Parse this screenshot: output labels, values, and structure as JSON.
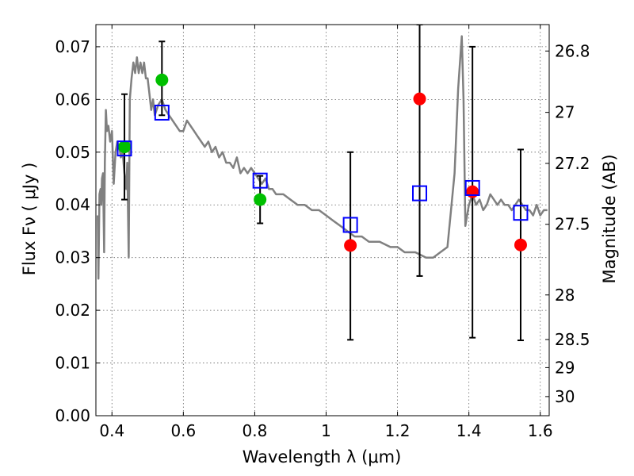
{
  "chart_data": {
    "type": "scatter",
    "xlabel": "Wavelength  λ (μm)",
    "ylabel": "Flux  Fν  ( μJy )",
    "y2label": "Magnitude (AB)",
    "xlim": [
      0.355,
      1.625
    ],
    "ylim": [
      0.0,
      0.0742
    ],
    "xticks": [
      0.4,
      0.6,
      0.8,
      1.0,
      1.2,
      1.4,
      1.6
    ],
    "xtick_labels": [
      "0.4",
      "0.6",
      "0.8",
      "1",
      "1.2",
      "1.4",
      "1.6"
    ],
    "yticks": [
      0.0,
      0.01,
      0.02,
      0.03,
      0.04,
      0.05,
      0.06,
      0.07
    ],
    "ytick_labels": [
      "0.00",
      "0.01",
      "0.02",
      "0.03",
      "0.04",
      "0.05",
      "0.06",
      "0.07"
    ],
    "y2ticks": [
      26.8,
      27,
      27.2,
      27.5,
      28,
      28.5,
      29,
      30
    ],
    "y2tick_labels": [
      "26.8",
      "27",
      "27.2",
      "27.5",
      "28",
      "28.5",
      "29",
      "30"
    ],
    "grid": true,
    "colors": {
      "sed": "#808080",
      "green": "#00bf00",
      "red": "#ff0000",
      "model": "#0000ff",
      "errorbar": "#000000"
    },
    "sed_template": {
      "x": [
        0.36,
        0.362,
        0.365,
        0.368,
        0.37,
        0.372,
        0.375,
        0.378,
        0.38,
        0.383,
        0.386,
        0.39,
        0.395,
        0.4,
        0.405,
        0.41,
        0.415,
        0.42,
        0.425,
        0.43,
        0.435,
        0.44,
        0.443,
        0.447,
        0.45,
        0.455,
        0.46,
        0.465,
        0.47,
        0.475,
        0.48,
        0.485,
        0.49,
        0.495,
        0.5,
        0.505,
        0.51,
        0.515,
        0.52,
        0.53,
        0.54,
        0.55,
        0.56,
        0.57,
        0.58,
        0.59,
        0.6,
        0.61,
        0.62,
        0.63,
        0.64,
        0.65,
        0.66,
        0.67,
        0.68,
        0.69,
        0.7,
        0.71,
        0.72,
        0.73,
        0.74,
        0.75,
        0.76,
        0.77,
        0.78,
        0.79,
        0.8,
        0.81,
        0.82,
        0.83,
        0.84,
        0.85,
        0.86,
        0.87,
        0.88,
        0.9,
        0.92,
        0.94,
        0.96,
        0.98,
        1.0,
        1.02,
        1.04,
        1.06,
        1.08,
        1.1,
        1.12,
        1.15,
        1.18,
        1.2,
        1.22,
        1.25,
        1.28,
        1.3,
        1.32,
        1.34,
        1.36,
        1.37,
        1.38,
        1.385,
        1.39,
        1.395,
        1.4,
        1.41,
        1.42,
        1.43,
        1.44,
        1.45,
        1.46,
        1.47,
        1.48,
        1.49,
        1.5,
        1.51,
        1.52,
        1.53,
        1.54,
        1.55,
        1.56,
        1.57,
        1.58,
        1.59,
        1.6,
        1.61,
        1.62
      ],
      "y": [
        0.038,
        0.026,
        0.042,
        0.043,
        0.04,
        0.045,
        0.046,
        0.031,
        0.048,
        0.058,
        0.054,
        0.055,
        0.052,
        0.054,
        0.044,
        0.05,
        0.052,
        0.051,
        0.049,
        0.05,
        0.046,
        0.043,
        0.048,
        0.03,
        0.06,
        0.064,
        0.067,
        0.065,
        0.068,
        0.065,
        0.067,
        0.065,
        0.067,
        0.064,
        0.064,
        0.061,
        0.058,
        0.06,
        0.057,
        0.059,
        0.06,
        0.058,
        0.057,
        0.056,
        0.055,
        0.054,
        0.054,
        0.056,
        0.055,
        0.054,
        0.053,
        0.052,
        0.051,
        0.052,
        0.05,
        0.051,
        0.049,
        0.05,
        0.048,
        0.048,
        0.047,
        0.049,
        0.046,
        0.047,
        0.046,
        0.047,
        0.046,
        0.045,
        0.044,
        0.045,
        0.043,
        0.043,
        0.042,
        0.042,
        0.042,
        0.041,
        0.04,
        0.04,
        0.039,
        0.039,
        0.038,
        0.037,
        0.036,
        0.035,
        0.034,
        0.034,
        0.033,
        0.033,
        0.032,
        0.032,
        0.031,
        0.031,
        0.03,
        0.03,
        0.031,
        0.032,
        0.046,
        0.062,
        0.072,
        0.06,
        0.036,
        0.038,
        0.04,
        0.042,
        0.04,
        0.041,
        0.039,
        0.04,
        0.042,
        0.041,
        0.04,
        0.041,
        0.04,
        0.04,
        0.039,
        0.04,
        0.041,
        0.04,
        0.039,
        0.039,
        0.038,
        0.04,
        0.038,
        0.039,
        0.039
      ]
    },
    "photometry_points": [
      {
        "x": 0.435,
        "y": 0.051,
        "color": "green"
      },
      {
        "x": 0.54,
        "y": 0.0637,
        "color": "green"
      },
      {
        "x": 0.815,
        "y": 0.041,
        "color": "green"
      },
      {
        "x": 1.068,
        "y": 0.0323,
        "color": "red"
      },
      {
        "x": 1.262,
        "y": 0.0601,
        "color": "red"
      },
      {
        "x": 1.41,
        "y": 0.0425,
        "color": "red"
      },
      {
        "x": 1.545,
        "y": 0.0324,
        "color": "red"
      }
    ],
    "model_points": [
      {
        "x": 0.435,
        "y": 0.0507
      },
      {
        "x": 0.54,
        "y": 0.0575
      },
      {
        "x": 0.815,
        "y": 0.0446
      },
      {
        "x": 1.068,
        "y": 0.0362
      },
      {
        "x": 1.262,
        "y": 0.0422
      },
      {
        "x": 1.41,
        "y": 0.0432
      },
      {
        "x": 1.545,
        "y": 0.0385
      }
    ],
    "error_bars": [
      {
        "x": 0.435,
        "low": 0.041,
        "high": 0.061
      },
      {
        "x": 0.54,
        "low": 0.057,
        "high": 0.071
      },
      {
        "x": 0.815,
        "low": 0.0365,
        "high": 0.0455
      },
      {
        "x": 1.068,
        "low": 0.0144,
        "high": 0.05
      },
      {
        "x": 1.262,
        "low": 0.0265,
        "high": 0.0742
      },
      {
        "x": 1.41,
        "low": 0.0148,
        "high": 0.07
      },
      {
        "x": 1.545,
        "low": 0.0143,
        "high": 0.0505
      }
    ]
  }
}
